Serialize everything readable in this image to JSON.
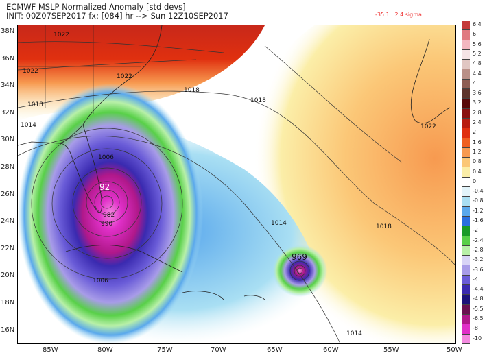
{
  "header": {
    "title": "ECMWF MSLP Normalized Anomaly [std devs]",
    "init": "INIT: 00Z07SEP2017 fx: [084] hr --> Sun 12Z10SEP2017",
    "stat": "-35.1 | 2.4 sigma"
  },
  "lat_labels": [
    "38N",
    "36N",
    "34N",
    "32N",
    "30N",
    "28N",
    "26N",
    "24N",
    "22N",
    "20N",
    "18N",
    "16N"
  ],
  "lon_labels": [
    "85W",
    "80W",
    "75W",
    "70W",
    "65W",
    "60W",
    "55W",
    "50W"
  ],
  "contours": [
    "1022",
    "1022",
    "1022",
    "1018",
    "1018",
    "1014",
    "1018",
    "1022",
    "1006",
    "990",
    "982",
    "1006",
    "1014",
    "1018",
    "1014",
    "969",
    "92"
  ],
  "colorbar": {
    "labels": [
      "6.4",
      "6",
      "5.6",
      "5.2",
      "4.8",
      "4.4",
      "4",
      "3.6",
      "3.2",
      "2.8",
      "2.4",
      "2",
      "1.6",
      "1.2",
      "0.8",
      "0.4",
      "0",
      "-0.4",
      "-0.8",
      "-1.2",
      "-1.6",
      "-2",
      "-2.4",
      "-2.8",
      "-3.2",
      "-3.6",
      "-4",
      "-4.4",
      "-4.8",
      "-5.5",
      "-6.5",
      "-8",
      "-10"
    ],
    "colors": [
      "#c43a3a",
      "#e07a80",
      "#f3b7c0",
      "#f5e4e6",
      "#e0c6c2",
      "#b99088",
      "#8e5e54",
      "#5e342c",
      "#5a0a0a",
      "#8a1010",
      "#b81c10",
      "#e0300f",
      "#f06020",
      "#f79a50",
      "#fbc777",
      "#fbeea8",
      "#ffffff",
      "#e2f4fa",
      "#a9dff3",
      "#5aa8ec",
      "#2a6fe0",
      "#1a9a28",
      "#58d048",
      "#b8f0a8",
      "#d8d4f6",
      "#a89ce8",
      "#6a5cd8",
      "#3a2ab0",
      "#1c127a",
      "#6a1050",
      "#b0188a",
      "#e030c8",
      "#f48ae0"
    ]
  }
}
